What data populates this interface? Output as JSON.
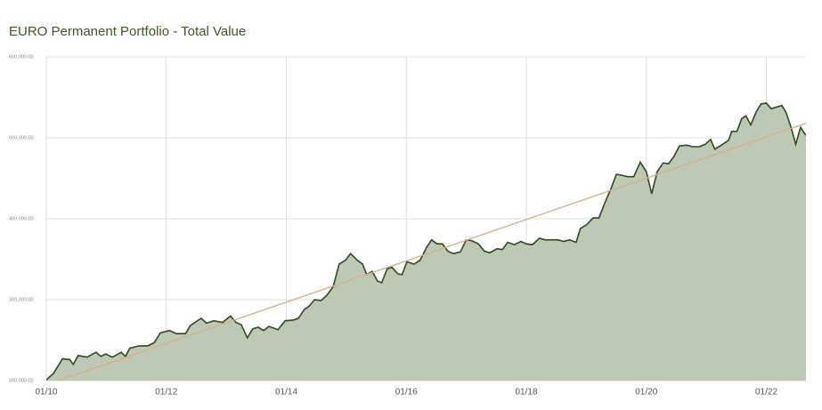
{
  "chart_data": {
    "type": "area",
    "title": "EURO Permanent Portfolio - Total Value",
    "series": [
      {
        "type": "area",
        "color": "#2f4a1a",
        "fill": "#bdc9b5",
        "x": [
          2010.0,
          2010.12,
          2010.27,
          2010.39,
          2010.45,
          2010.53,
          2010.68,
          2010.83,
          2010.91,
          2010.99,
          2011.1,
          2011.25,
          2011.32,
          2011.39,
          2011.54,
          2011.69,
          2011.8,
          2011.9,
          2012.05,
          2012.17,
          2012.32,
          2012.4,
          2012.58,
          2012.67,
          2012.79,
          2012.94,
          2013.07,
          2013.16,
          2013.25,
          2013.35,
          2013.44,
          2013.53,
          2013.62,
          2013.71,
          2013.86,
          2013.98,
          2014.12,
          2014.2,
          2014.3,
          2014.38,
          2014.47,
          2014.58,
          2014.67,
          2014.78,
          2014.88,
          2014.99,
          2015.07,
          2015.18,
          2015.27,
          2015.34,
          2015.43,
          2015.52,
          2015.59,
          2015.68,
          2015.76,
          2015.86,
          2015.93,
          2016.01,
          2016.13,
          2016.23,
          2016.34,
          2016.42,
          2016.51,
          2016.6,
          2016.69,
          2016.78,
          2016.9,
          2017.0,
          2017.09,
          2017.2,
          2017.3,
          2017.39,
          2017.51,
          2017.6,
          2017.69,
          2017.8,
          2017.91,
          2018.0,
          2018.1,
          2018.22,
          2018.31,
          2018.43,
          2018.53,
          2018.62,
          2018.72,
          2018.83,
          2018.9,
          2019.01,
          2019.11,
          2019.21,
          2019.32,
          2019.41,
          2019.5,
          2019.58,
          2019.69,
          2019.79,
          2019.9,
          2020.0,
          2020.09,
          2020.18,
          2020.28,
          2020.37,
          2020.46,
          2020.55,
          2020.67,
          2020.77,
          2020.88,
          2020.98,
          2021.07,
          2021.14,
          2021.25,
          2021.37,
          2021.42,
          2021.51,
          2021.59,
          2021.66,
          2021.74,
          2021.83,
          2021.91,
          2022.0,
          2022.08,
          2022.17,
          2022.26,
          2022.33,
          2022.42,
          2022.49,
          2022.57,
          2022.66
        ],
        "values": [
          201000,
          209000,
          227000,
          226000,
          220000,
          231000,
          229000,
          235000,
          230000,
          233000,
          229000,
          235000,
          230000,
          240000,
          243000,
          243000,
          247000,
          259000,
          262000,
          258000,
          258000,
          268000,
          277000,
          271000,
          274000,
          272000,
          280000,
          272000,
          269000,
          253000,
          264000,
          266000,
          262000,
          267000,
          263000,
          274000,
          275000,
          277000,
          288000,
          292000,
          300000,
          299000,
          305000,
          316000,
          344000,
          349000,
          357000,
          349000,
          344000,
          331000,
          335000,
          323000,
          321000,
          338000,
          340000,
          332000,
          331000,
          347000,
          344000,
          349000,
          365000,
          374000,
          369000,
          369000,
          360000,
          357000,
          359000,
          374000,
          373000,
          369000,
          360000,
          358000,
          363000,
          362000,
          371000,
          368000,
          372000,
          369000,
          368000,
          376000,
          374000,
          374000,
          374000,
          372000,
          374000,
          371000,
          388000,
          393000,
          401000,
          401000,
          422000,
          437000,
          455000,
          454000,
          452000,
          452000,
          470000,
          458000,
          431000,
          458000,
          469000,
          468000,
          477000,
          490000,
          491000,
          489000,
          489000,
          492000,
          498000,
          486000,
          491000,
          497000,
          508000,
          508000,
          524000,
          527000,
          516000,
          532000,
          542000,
          543000,
          536000,
          538000,
          540000,
          531000,
          511000,
          492000,
          513000,
          503000
        ]
      },
      {
        "type": "line",
        "color": "#d2b28a",
        "x": [
          2010.0,
          2022.66
        ],
        "values": [
          195000,
          518000
        ]
      }
    ],
    "xlim": [
      2010,
      2022.66
    ],
    "xticks": [
      {
        "value": 2010,
        "label": "01/10"
      },
      {
        "value": 2012,
        "label": "01/12"
      },
      {
        "value": 2014,
        "label": "01/14"
      },
      {
        "value": 2016,
        "label": "01/16"
      },
      {
        "value": 2018,
        "label": "01/18"
      },
      {
        "value": 2020,
        "label": "01/20"
      },
      {
        "value": 2022,
        "label": "01/22"
      }
    ],
    "ylim": [
      200000,
      600000
    ],
    "yticks": [
      {
        "value": 200000,
        "label": "200,000.00"
      },
      {
        "value": 300000,
        "label": "300,000.00"
      },
      {
        "value": 400000,
        "label": "400,000.00"
      },
      {
        "value": 500000,
        "label": "500,000.00"
      },
      {
        "value": 600000,
        "label": "600,000.00"
      }
    ],
    "grid": true
  }
}
